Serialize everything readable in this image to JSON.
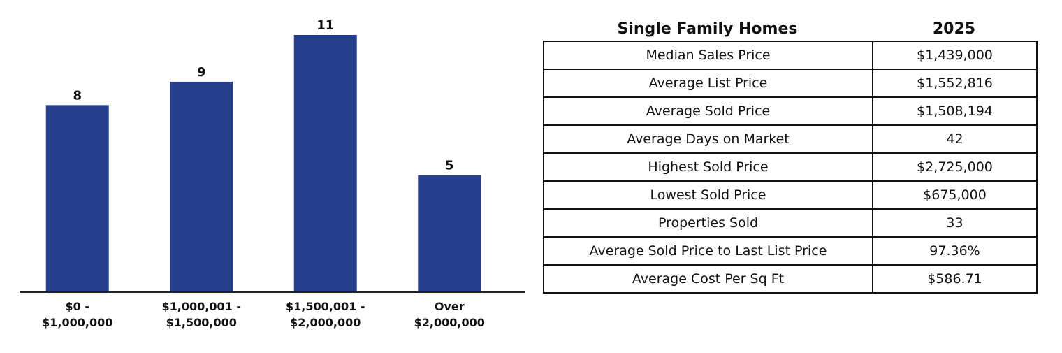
{
  "chart_data": {
    "type": "bar",
    "categories": [
      [
        "$0 -",
        "$1,000,000"
      ],
      [
        "$1,000,001 -",
        "$1,500,000"
      ],
      [
        "$1,500,001 -",
        "$2,000,000"
      ],
      [
        "Over",
        "$2,000,000"
      ]
    ],
    "values": [
      8,
      9,
      11,
      5
    ],
    "data_labels": [
      "8",
      "9",
      "11",
      "5"
    ],
    "title": "",
    "xlabel": "",
    "ylabel": "",
    "ylim": [
      0,
      11
    ],
    "grid": false,
    "bar_color": "#253f8c",
    "axis_color": "#222222"
  },
  "table": {
    "header": [
      "Single Family Homes",
      "2025"
    ],
    "rows": [
      [
        "Median Sales Price",
        "$1,439,000"
      ],
      [
        "Average List Price",
        "$1,552,816"
      ],
      [
        "Average Sold Price",
        "$1,508,194"
      ],
      [
        "Average Days on Market",
        "42"
      ],
      [
        "Highest Sold Price",
        "$2,725,000"
      ],
      [
        "Lowest Sold Price",
        "$675,000"
      ],
      [
        "Properties Sold",
        "33"
      ],
      [
        "Average Sold Price to Last List Price",
        "97.36%"
      ],
      [
        "Average Cost Per Sq Ft",
        "$586.71"
      ]
    ]
  }
}
